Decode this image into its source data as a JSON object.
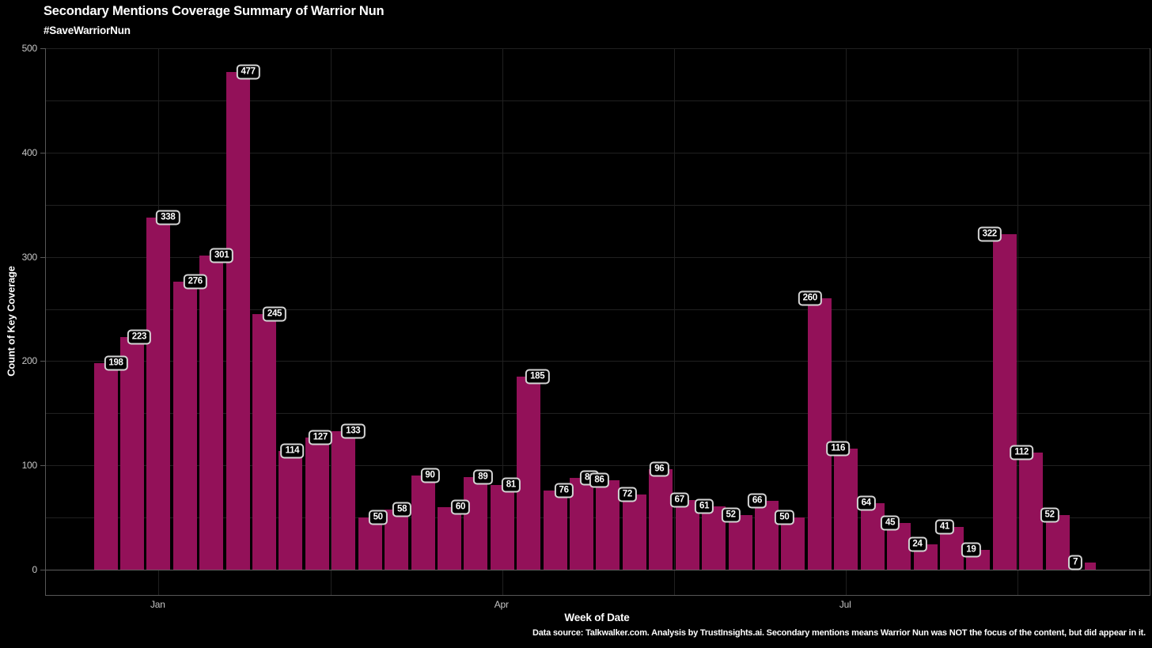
{
  "footer": {
    "note": "Data source: Talkwalker.com. Analysis by TrustInsights.ai. Secondary mentions means Warrior Nun was NOT the focus of the content, but did appear in it."
  },
  "chart_data": {
    "type": "bar",
    "title": "Secondary Mentions Coverage Summary of Warrior Nun",
    "subtitle": "#SaveWarriorNun",
    "xlabel": "Week of Date",
    "ylabel": "Count of Key Coverage",
    "x_unit": "week",
    "values": [
      198,
      223,
      338,
      276,
      301,
      477,
      245,
      114,
      127,
      133,
      50,
      58,
      90,
      60,
      89,
      81,
      185,
      76,
      88,
      86,
      72,
      96,
      67,
      61,
      52,
      66,
      50,
      260,
      116,
      64,
      45,
      24,
      41,
      19,
      322,
      112,
      52,
      7
    ],
    "bar_value_labels_shown": true,
    "x_ticks": [
      {
        "label": "Jan",
        "bar_index": 3
      },
      {
        "label": "Apr",
        "bar_index": 16
      },
      {
        "label": "Jul",
        "bar_index": 29
      }
    ],
    "y_ticks": [
      0,
      100,
      200,
      300,
      400,
      500
    ],
    "ylim": [
      0,
      500
    ],
    "grid_step": 50,
    "grid": "on",
    "legend": "none",
    "colors": {
      "background": "#000000",
      "bar": "#931159",
      "gridline": "#202020",
      "axis_line": "#5f5f5f",
      "tick_text": "#c6c6c6",
      "label_text": "#ffffff",
      "label_box_border": "#d4d4d4",
      "label_box_fill": "#000000",
      "title_text": "#ffffff"
    }
  }
}
